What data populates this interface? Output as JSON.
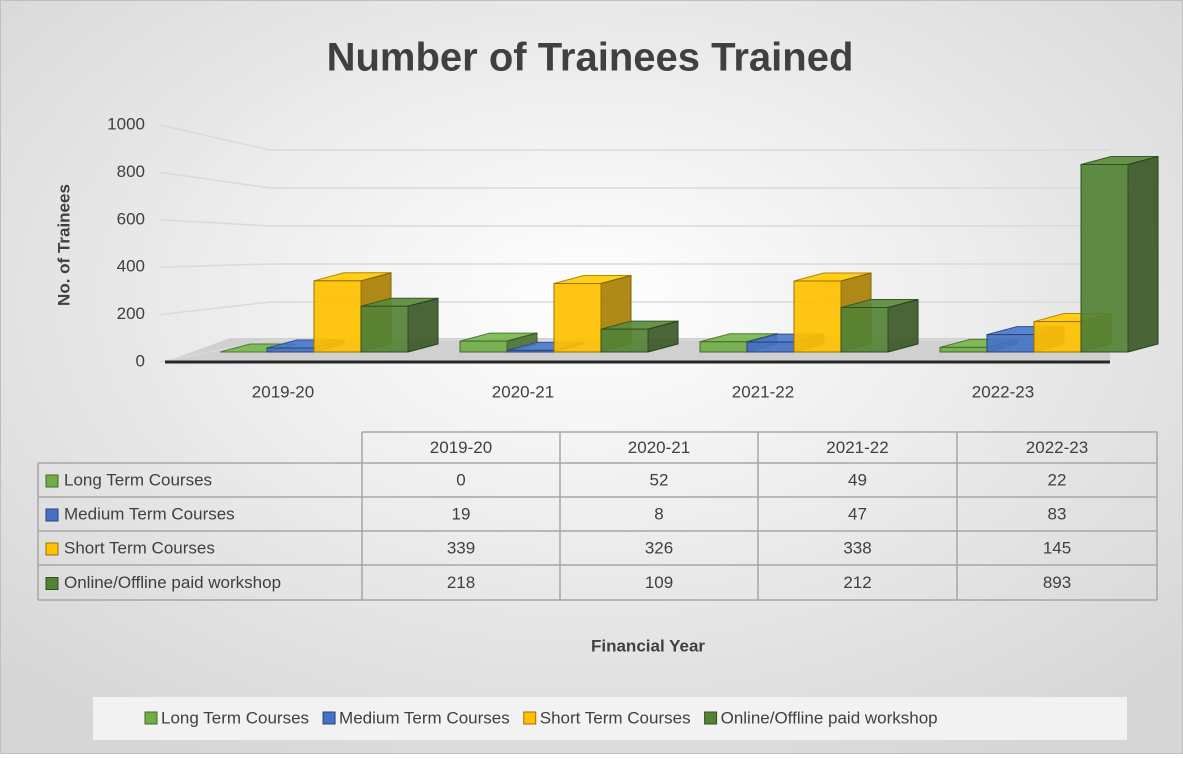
{
  "chart_data": {
    "type": "bar3d",
    "title": "Number of Trainees Trained",
    "x_label": "Financial Year",
    "y_label": "No. of Trainees",
    "categories": [
      "2019-20",
      "2020-21",
      "2021-22",
      "2022-23"
    ],
    "series": [
      {
        "name": "Long Term Courses",
        "color": "#70ad47",
        "values": [
          0,
          52,
          49,
          22
        ]
      },
      {
        "name": "Medium Term Courses",
        "color": "#4472c4",
        "values": [
          19,
          8,
          47,
          83
        ]
      },
      {
        "name": "Short Term Courses",
        "color": "#ffc000",
        "values": [
          339,
          326,
          338,
          145
        ]
      },
      {
        "name": "Online/Offline paid workshop",
        "color": "#548235",
        "values": [
          218,
          109,
          212,
          893
        ]
      }
    ],
    "ylim": [
      0,
      1000
    ],
    "yticks": [
      0,
      200,
      400,
      600,
      800,
      1000
    ],
    "grid": true,
    "legend": "bottom",
    "data_table": true
  }
}
